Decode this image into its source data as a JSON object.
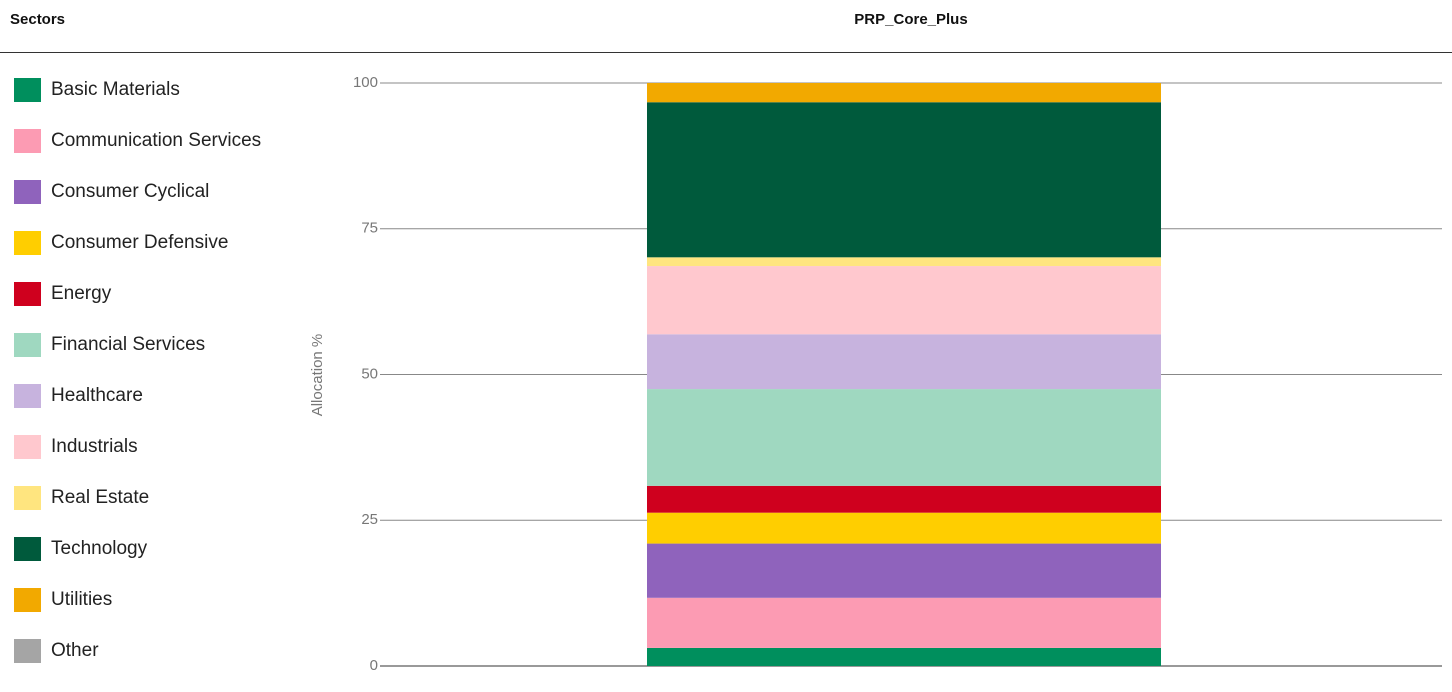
{
  "chart_data": {
    "type": "stacked_bar",
    "legend_title": "Sectors",
    "categories": [
      "PRP_Core_Plus"
    ],
    "y_label": "Allocation %",
    "ylim": [
      0,
      100
    ],
    "yticks": [
      0,
      25,
      50,
      75,
      100
    ],
    "grid": true,
    "legend": "left",
    "series": [
      {
        "name": "Basic Materials",
        "color": "#008f5d",
        "values": [
          3.1
        ]
      },
      {
        "name": "Communication Services",
        "color": "#fc9bb3",
        "values": [
          8.6
        ]
      },
      {
        "name": "Consumer Cyclical",
        "color": "#8f63bc",
        "values": [
          9.3
        ]
      },
      {
        "name": "Consumer Defensive",
        "color": "#ffce00",
        "values": [
          5.3
        ]
      },
      {
        "name": "Energy",
        "color": "#cf001e",
        "values": [
          4.6
        ]
      },
      {
        "name": "Financial Services",
        "color": "#9fd8c0",
        "values": [
          16.6
        ]
      },
      {
        "name": "Healthcare",
        "color": "#c7b3de",
        "values": [
          9.4
        ]
      },
      {
        "name": "Industrials",
        "color": "#ffc8ce",
        "values": [
          11.7
        ]
      },
      {
        "name": "Real Estate",
        "color": "#ffe57f",
        "values": [
          1.5
        ]
      },
      {
        "name": "Technology",
        "color": "#005a3c",
        "values": [
          26.6
        ]
      },
      {
        "name": "Utilities",
        "color": "#f2a900",
        "values": [
          3.3
        ]
      },
      {
        "name": "Other",
        "color": "#a5a5a5",
        "values": [
          0
        ]
      }
    ]
  }
}
